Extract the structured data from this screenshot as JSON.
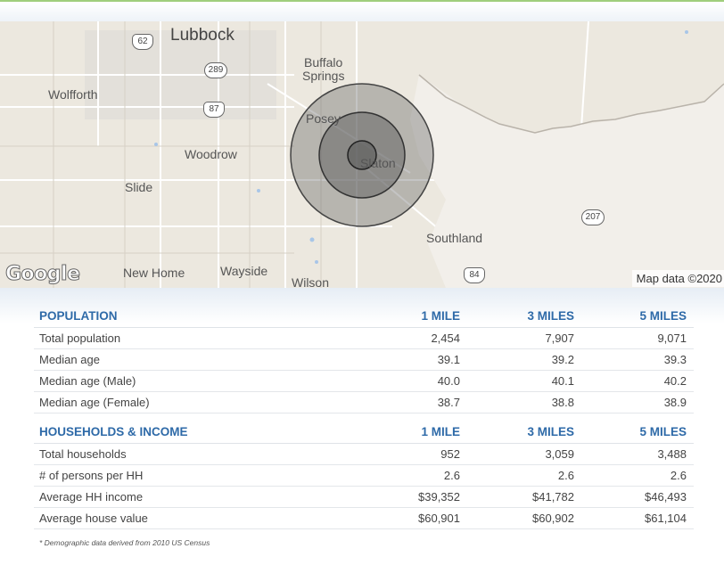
{
  "map": {
    "places": {
      "lubbock": "Lubbock",
      "wolfforth": "Wolfforth",
      "buffalo_springs_1": "Buffalo",
      "buffalo_springs_2": "Springs",
      "posey": "Posey",
      "slaton": "Slaton",
      "woodrow": "Woodrow",
      "slide": "Slide",
      "southland": "Southland",
      "new_home": "New Home",
      "wayside": "Wayside",
      "wilson": "Wilson"
    },
    "shields": {
      "r62": "62",
      "r289": "289",
      "r87": "87",
      "r207": "207",
      "r84": "84"
    },
    "logo": "Google",
    "attribution": "Map data ©2020"
  },
  "population": {
    "headers": [
      "POPULATION",
      "1 MILE",
      "3 MILES",
      "5 MILES"
    ],
    "rows": [
      [
        "Total population",
        "2,454",
        "7,907",
        "9,071"
      ],
      [
        "Median age",
        "39.1",
        "39.2",
        "39.3"
      ],
      [
        "Median age (Male)",
        "40.0",
        "40.1",
        "40.2"
      ],
      [
        "Median age (Female)",
        "38.7",
        "38.8",
        "38.9"
      ]
    ]
  },
  "households": {
    "headers": [
      "HOUSEHOLDS & INCOME",
      "1 MILE",
      "3 MILES",
      "5 MILES"
    ],
    "rows": [
      [
        "Total households",
        "952",
        "3,059",
        "3,488"
      ],
      [
        "# of persons per HH",
        "2.6",
        "2.6",
        "2.6"
      ],
      [
        "Average HH income",
        "$39,352",
        "$41,782",
        "$46,493"
      ],
      [
        "Average house value",
        "$60,901",
        "$60,902",
        "$61,104"
      ]
    ]
  },
  "footnote": "* Demographic data derived from 2010 US Census",
  "colors": {
    "header_text": "#2e6aa8",
    "accent_top": "#9fce7c",
    "radius_fill": "#555555"
  }
}
